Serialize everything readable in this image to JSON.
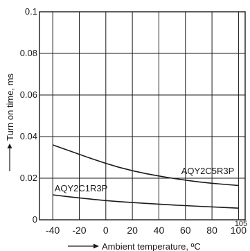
{
  "chart_data": {
    "type": "line",
    "title": "",
    "xlabel": "Ambient temperature, ºC",
    "ylabel": "Turn on time, ms",
    "xlim": [
      -50,
      105
    ],
    "ylim": [
      0,
      0.1
    ],
    "x_ticks": [
      "-40",
      "-20",
      "0",
      "20",
      "40",
      "60",
      "80",
      "100"
    ],
    "x_tick_values": [
      -40,
      -20,
      0,
      20,
      40,
      60,
      80,
      100
    ],
    "x_extra_tick": "105",
    "y_ticks": [
      "0",
      "0.02",
      "0.04",
      "0.06",
      "0.08",
      "0.1"
    ],
    "y_tick_values": [
      0,
      0.02,
      0.04,
      0.06,
      0.08,
      0.1
    ],
    "grid": true,
    "series": [
      {
        "name": "AQY2C5R3P",
        "x": [
          -40,
          -20,
          0,
          20,
          40,
          60,
          80,
          100
        ],
        "y": [
          0.036,
          0.0315,
          0.027,
          0.0235,
          0.021,
          0.019,
          0.0175,
          0.0165
        ]
      },
      {
        "name": "AQY2C1R3P",
        "x": [
          -40,
          -20,
          0,
          20,
          40,
          60,
          80,
          100
        ],
        "y": [
          0.012,
          0.0105,
          0.0092,
          0.0083,
          0.0075,
          0.0068,
          0.0062,
          0.0056
        ]
      }
    ],
    "colors": {
      "line": "#1a1a1a",
      "grid": "#1a1a1a",
      "axis": "#1a1a1a"
    }
  }
}
